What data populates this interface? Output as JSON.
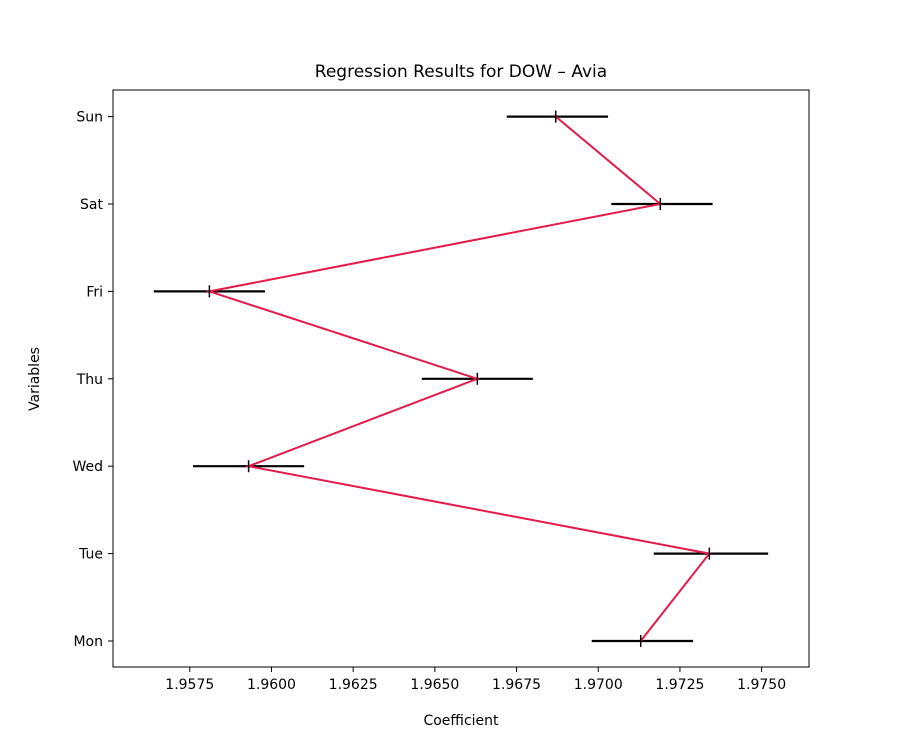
{
  "chart_data": {
    "type": "line",
    "title": "Regression Results for DOW – Avia",
    "xlabel": "Coefficient",
    "ylabel": "Variables",
    "categories": [
      "Mon",
      "Tue",
      "Wed",
      "Thu",
      "Fri",
      "Sat",
      "Sun"
    ],
    "series": [
      {
        "coefficients": [
          1.9713,
          1.9734,
          1.9593,
          1.9663,
          1.9581,
          1.9719,
          1.9687
        ],
        "ci_lower": [
          1.9698,
          1.9717,
          1.9576,
          1.9646,
          1.9564,
          1.9704,
          1.9672
        ],
        "ci_upper": [
          1.9729,
          1.9752,
          1.961,
          1.968,
          1.9598,
          1.9735,
          1.9703
        ]
      }
    ],
    "xlim": [
      1.95515,
      1.97645
    ],
    "x_ticks": [
      "1.9575",
      "1.9600",
      "1.9625",
      "1.9650",
      "1.9675",
      "1.9700",
      "1.9725",
      "1.9750"
    ],
    "x_tick_values": [
      1.9575,
      1.96,
      1.9625,
      1.965,
      1.9675,
      1.97,
      1.9725,
      1.975
    ],
    "grid": false,
    "colors": {
      "line": "#e31a4a",
      "error_bars": "#000000",
      "axes": "#000000"
    }
  }
}
